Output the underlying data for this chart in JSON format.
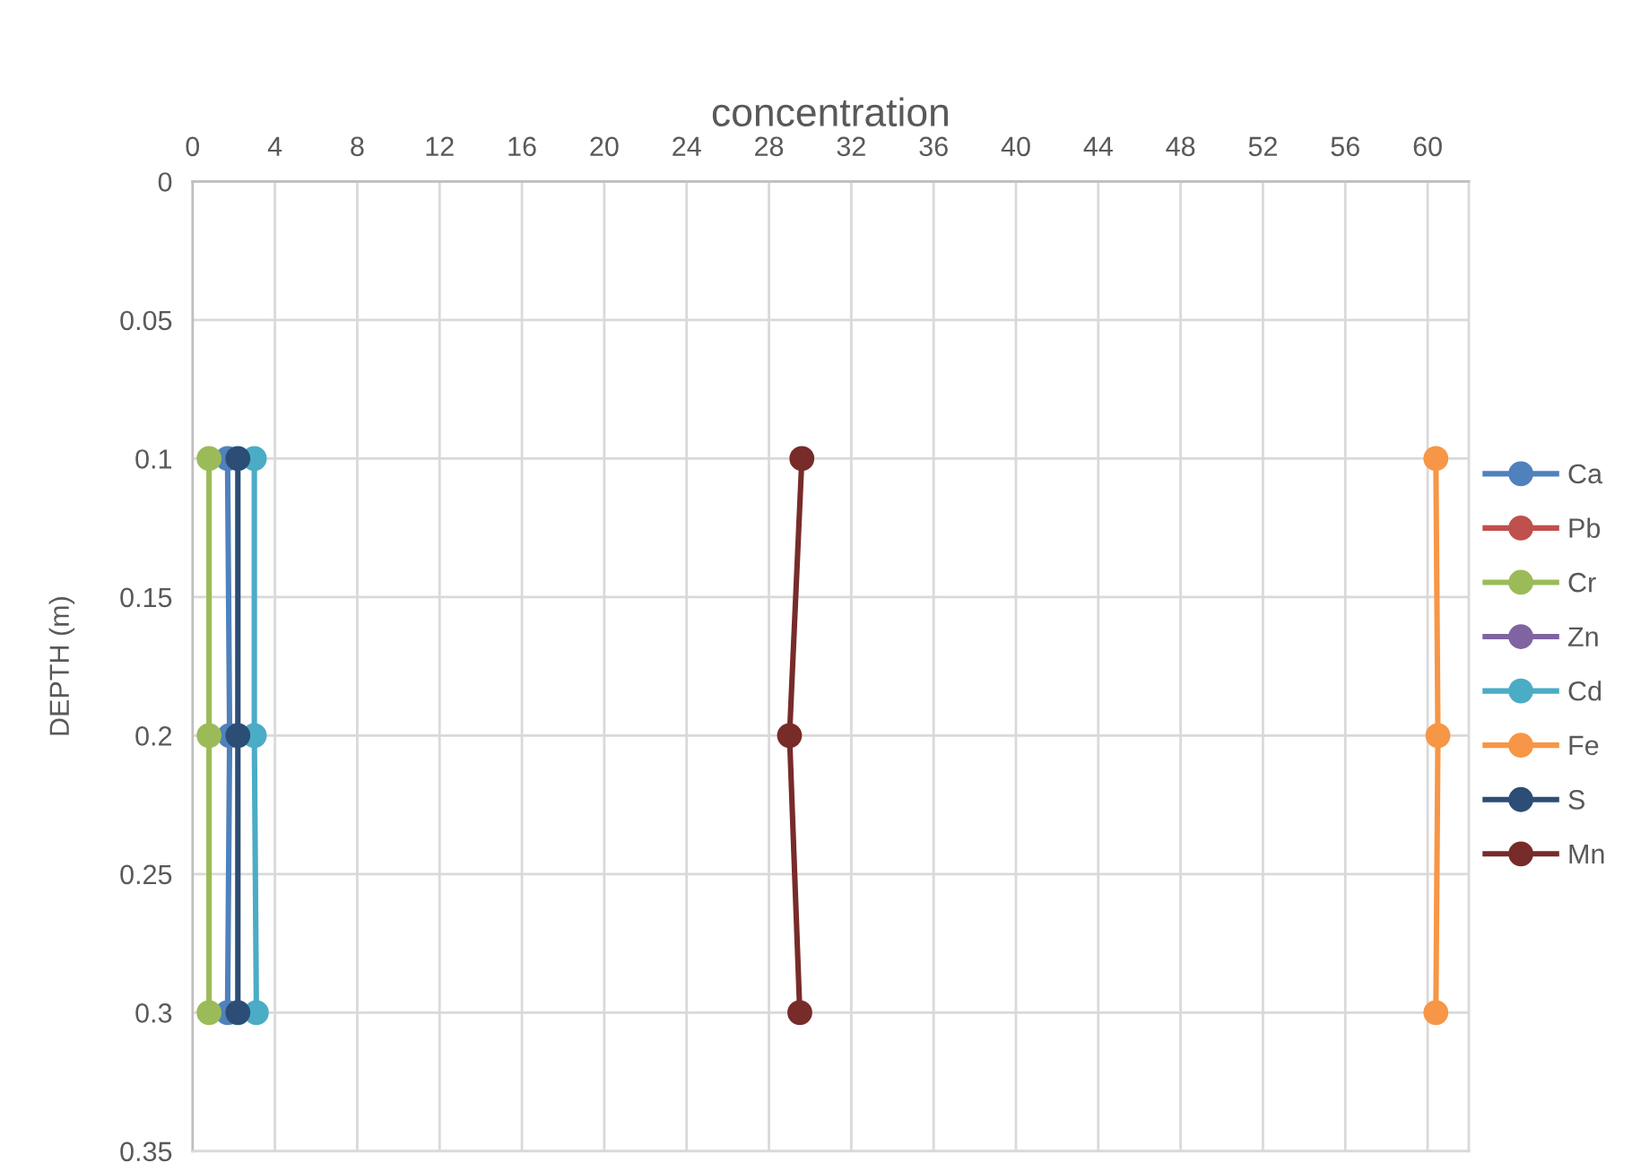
{
  "chart_data": {
    "type": "line",
    "xlabel": "concentration",
    "ylabel": "DEPTH (m)",
    "xlim": [
      0,
      62
    ],
    "xticks": [
      0,
      4,
      8,
      12,
      16,
      20,
      24,
      28,
      32,
      36,
      40,
      44,
      48,
      52,
      56,
      60
    ],
    "ylim": [
      0.35,
      0
    ],
    "yticks": [
      0,
      0.05,
      0.1,
      0.15,
      0.2,
      0.25,
      0.3,
      0.35
    ],
    "grid": true,
    "legend": "right",
    "marker": "circle",
    "line_style": "solid",
    "series": [
      {
        "name": "Ca",
        "color": "#4f81bd",
        "x": [
          1.7,
          1.8,
          1.7
        ],
        "values": [
          0.1,
          0.2,
          0.3
        ]
      },
      {
        "name": "Pb",
        "color": "#c0504d",
        "x": [
          null,
          null,
          null
        ],
        "values": [
          null,
          null,
          null
        ]
      },
      {
        "name": "Cr",
        "color": "#9bbb59",
        "x": [
          0.8,
          0.8,
          0.8
        ],
        "values": [
          0.1,
          0.2,
          0.3
        ]
      },
      {
        "name": "Zn",
        "color": "#8064a2",
        "x": [
          null,
          null,
          null
        ],
        "values": [
          null,
          null,
          null
        ]
      },
      {
        "name": "Cd",
        "color": "#4bacc6",
        "x": [
          3.0,
          3.0,
          3.1
        ],
        "values": [
          0.1,
          0.2,
          0.3
        ]
      },
      {
        "name": "Fe",
        "color": "#f79646",
        "x": [
          60.4,
          60.5,
          60.4
        ],
        "values": [
          0.1,
          0.2,
          0.3
        ]
      },
      {
        "name": "S",
        "color": "#2c4d75",
        "x": [
          2.2,
          2.2,
          2.2
        ],
        "values": [
          0.1,
          0.2,
          0.3
        ]
      },
      {
        "name": "Mn",
        "color": "#772c2a",
        "x": [
          29.6,
          29.0,
          29.5
        ],
        "values": [
          0.1,
          0.2,
          0.3
        ]
      }
    ]
  }
}
